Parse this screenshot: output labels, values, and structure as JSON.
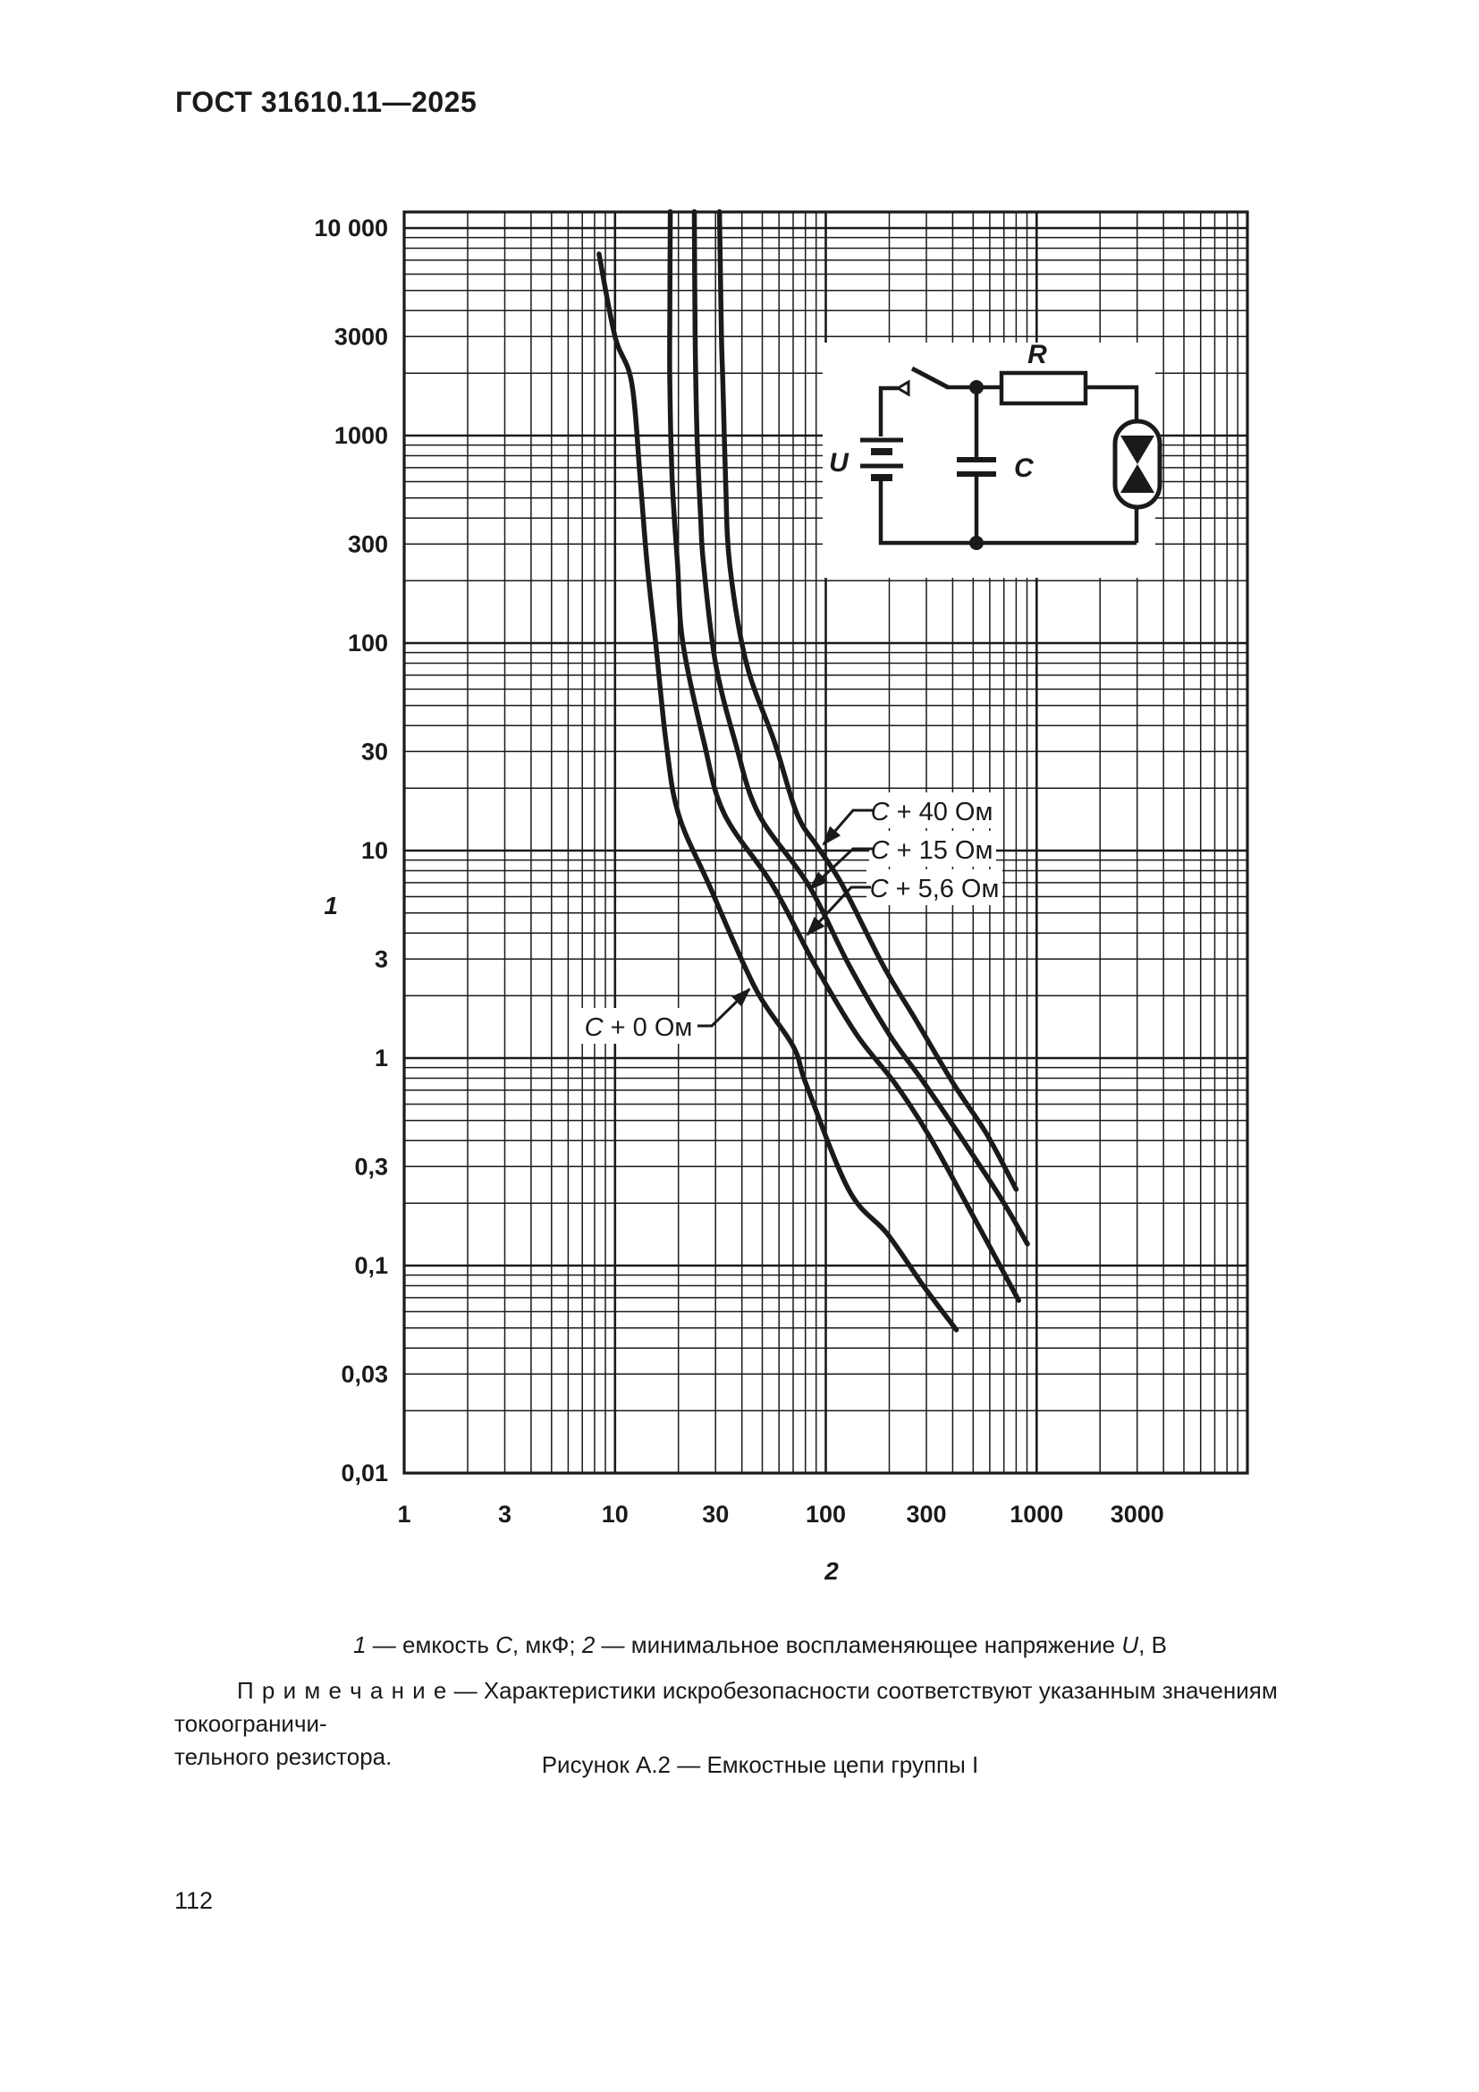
{
  "header": {
    "title": "ГОСТ 31610.11—2025"
  },
  "page_number": "112",
  "caption_segments": [
    {
      "t": "1",
      "i": true
    },
    {
      "t": " — емкость ",
      "i": false
    },
    {
      "t": "С",
      "i": true
    },
    {
      "t": ", мкФ; ",
      "i": false
    },
    {
      "t": "2",
      "i": true
    },
    {
      "t": " — минимальное воспламеняющее напряжение ",
      "i": false
    },
    {
      "t": "U",
      "i": true
    },
    {
      "t": ", В",
      "i": false
    }
  ],
  "note": {
    "label": "П р и м е ч а н и е",
    "line1_rest": " — Характеристики искробезопасности соответствуют указанным значениям токоограничи-",
    "line2": "тельного резистора."
  },
  "figure_caption": "Рисунок А.2 — Емкостные цепи группы I",
  "circuit": {
    "resistor_label": "R",
    "capacitor_label": "C",
    "source_label": "U"
  },
  "chart_data": {
    "type": "line",
    "title": "Рисунок А.2 — Емкостные цепи группы I",
    "xlabel": "2 — минимальное воспламеняющее напряжение U, В",
    "ylabel": "1 — емкость С, мкФ",
    "x_axis": {
      "scale": "log",
      "min": 1,
      "max": 10000,
      "axis_number": "2",
      "tick_labels": [
        "1",
        "3",
        "10",
        "30",
        "100",
        "300",
        "1000",
        "3000"
      ],
      "tick_values": [
        1,
        3,
        10,
        30,
        100,
        300,
        1000,
        3000
      ]
    },
    "y_axis": {
      "scale": "log",
      "min": 0.01,
      "max": 12000,
      "axis_number": "1",
      "tick_labels": [
        "10 000",
        "3000",
        "1000",
        "300",
        "100",
        "30",
        "10",
        "3",
        "1",
        "0,3",
        "0,1",
        "0,03",
        "0,01"
      ],
      "tick_values": [
        10000,
        3000,
        1000,
        300,
        100,
        30,
        10,
        3,
        1,
        0.3,
        0.1,
        0.03,
        0.01
      ]
    },
    "grid": true,
    "line_color": "#1a1a1a",
    "series": [
      {
        "name_symbol": "С",
        "name_rest": " + 0 Ом",
        "points_U_C": [
          [
            8.4,
            7500
          ],
          [
            10,
            3000
          ],
          [
            12,
            1800
          ],
          [
            13.2,
            600
          ],
          [
            14.2,
            240
          ],
          [
            15.6,
            100
          ],
          [
            17.5,
            33
          ],
          [
            20,
            15
          ],
          [
            28,
            6.8
          ],
          [
            46,
            2.2
          ],
          [
            70,
            1.14
          ],
          [
            81,
            0.74
          ],
          [
            129,
            0.23
          ],
          [
            196,
            0.142
          ],
          [
            290,
            0.08
          ],
          [
            416,
            0.049
          ]
        ]
      },
      {
        "name_symbol": "С",
        "name_rest": " + 5,6 Ом",
        "points_U_C": [
          [
            18.3,
            12000
          ],
          [
            18.2,
            4000
          ],
          [
            18.2,
            1800
          ],
          [
            18.7,
            600
          ],
          [
            19.8,
            240
          ],
          [
            21,
            100
          ],
          [
            26.5,
            33
          ],
          [
            33,
            15
          ],
          [
            56,
            6.8
          ],
          [
            89,
            2.8
          ],
          [
            140,
            1.3
          ],
          [
            214,
            0.75
          ],
          [
            310,
            0.42
          ],
          [
            490,
            0.18
          ],
          [
            822,
            0.068
          ]
        ]
      },
      {
        "name_symbol": "С",
        "name_rest": " + 15 Ом",
        "points_U_C": [
          [
            23.8,
            12000
          ],
          [
            24,
            3000
          ],
          [
            24.5,
            1000
          ],
          [
            25.5,
            400
          ],
          [
            26.3,
            240
          ],
          [
            30,
            80
          ],
          [
            37.3,
            33
          ],
          [
            48,
            15
          ],
          [
            83,
            6.8
          ],
          [
            129,
            2.8
          ],
          [
            200,
            1.3
          ],
          [
            295,
            0.75
          ],
          [
            490,
            0.35
          ],
          [
            700,
            0.2
          ],
          [
            905,
            0.127
          ]
        ]
      },
      {
        "name_symbol": "С",
        "name_rest": " + 40 Ом",
        "points_U_C": [
          [
            31.3,
            12000
          ],
          [
            32,
            3000
          ],
          [
            32.5,
            1800
          ],
          [
            33.5,
            600
          ],
          [
            35,
            240
          ],
          [
            42,
            80
          ],
          [
            57.3,
            33
          ],
          [
            73,
            15
          ],
          [
            91.6,
            10.4
          ],
          [
            120,
            6.8
          ],
          [
            187,
            2.8
          ],
          [
            270,
            1.5
          ],
          [
            404,
            0.75
          ],
          [
            580,
            0.43
          ],
          [
            800,
            0.233
          ]
        ]
      }
    ]
  }
}
